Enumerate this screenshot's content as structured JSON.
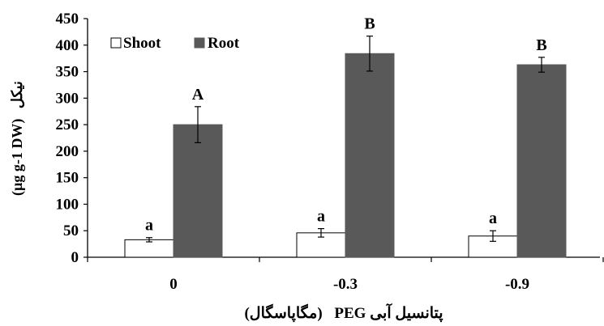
{
  "chart_data": {
    "type": "bar",
    "categories": [
      "0",
      "-0.3",
      "-0.9"
    ],
    "series": [
      {
        "name": "Shoot",
        "values": [
          33,
          46,
          40
        ],
        "errors": [
          4,
          8,
          10
        ],
        "labels": [
          "a",
          "a",
          "a"
        ],
        "color": "#ffffff"
      },
      {
        "name": "Root",
        "values": [
          250,
          384,
          363
        ],
        "errors": [
          34,
          33,
          14
        ],
        "labels": [
          "A",
          "B",
          "B"
        ],
        "color": "#595959"
      }
    ],
    "y_ticks": [
      0,
      50,
      100,
      150,
      200,
      250,
      300,
      350,
      400,
      450
    ],
    "ylim": [
      0,
      450
    ],
    "ylabel_unit": "(µg g-1 DW)",
    "ylabel_fa": "نیکل",
    "xlabel_fa_1": "پتانسیل آبی",
    "xlabel_peg": "PEG",
    "xlabel_fa_2": "(مگاپاسگال)",
    "legend_position": "top-left",
    "grid": false
  }
}
